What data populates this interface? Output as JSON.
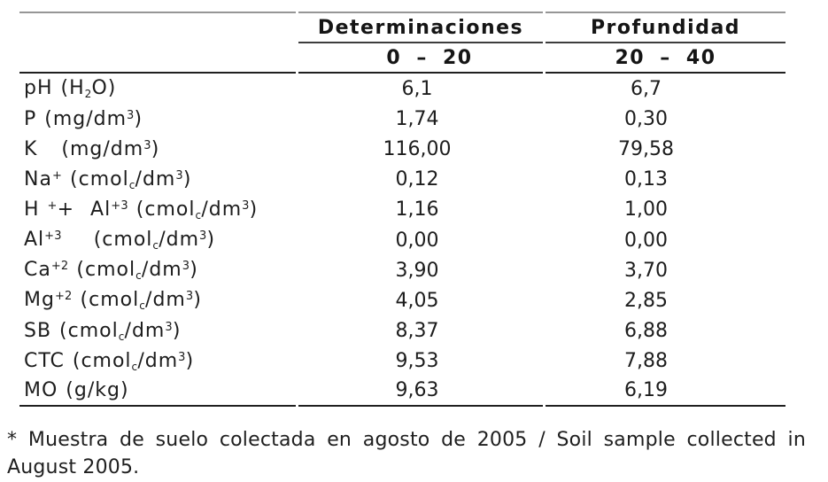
{
  "colors": {
    "background": "#ffffff",
    "text": "#1d1d1d",
    "rule_dark": "#1f1f1f",
    "rule_mid": "#3d3d3d",
    "rule_gray": "#969696"
  },
  "table": {
    "header": {
      "col1": "Determinaciones",
      "col2": "Profundidad"
    },
    "subheader": {
      "col1": "0 – 20",
      "col2": "20 – 40"
    },
    "rows": [
      {
        "id": "ph",
        "label": [
          {
            "t": "pH (H"
          },
          {
            "t": "2",
            "s": "sub"
          },
          {
            "t": "O)"
          }
        ],
        "v1": "6,1",
        "v2": "6,7"
      },
      {
        "id": "p",
        "label": [
          {
            "t": "P (mg/dm"
          },
          {
            "t": "3",
            "s": "sup"
          },
          {
            "t": ")"
          }
        ],
        "v1": "1,74",
        "v2": "0,30"
      },
      {
        "id": "k",
        "label": [
          {
            "t": "K   (mg/dm"
          },
          {
            "t": "3",
            "s": "sup"
          },
          {
            "t": ")"
          }
        ],
        "v1": "116,00",
        "v2": "79,58"
      },
      {
        "id": "na",
        "label": [
          {
            "t": "Na"
          },
          {
            "t": "+",
            "s": "sup"
          },
          {
            "t": " (cmol"
          },
          {
            "t": "c",
            "s": "sub"
          },
          {
            "t": "/dm"
          },
          {
            "t": "3",
            "s": "sup"
          },
          {
            "t": ")"
          }
        ],
        "v1": "0,12",
        "v2": "0,13"
      },
      {
        "id": "h-al",
        "label": [
          {
            "t": "H "
          },
          {
            "t": "+",
            "s": "sup"
          },
          {
            "t": "+  Al"
          },
          {
            "t": "+3",
            "s": "sup"
          },
          {
            "t": " (cmol"
          },
          {
            "t": "c",
            "s": "sub"
          },
          {
            "t": "/dm"
          },
          {
            "t": "3",
            "s": "sup"
          },
          {
            "t": ")"
          }
        ],
        "v1": "1,16",
        "v2": "1,00"
      },
      {
        "id": "al",
        "label": [
          {
            "t": "Al"
          },
          {
            "t": "+3",
            "s": "sup"
          },
          {
            "t": "    (cmol"
          },
          {
            "t": "c",
            "s": "sub"
          },
          {
            "t": "/dm"
          },
          {
            "t": "3",
            "s": "sup"
          },
          {
            "t": ")"
          }
        ],
        "v1": "0,00",
        "v2": "0,00"
      },
      {
        "id": "ca",
        "label": [
          {
            "t": "Ca"
          },
          {
            "t": "+2",
            "s": "sup"
          },
          {
            "t": " (cmol"
          },
          {
            "t": "c",
            "s": "sub"
          },
          {
            "t": "/dm"
          },
          {
            "t": "3",
            "s": "sup"
          },
          {
            "t": ")"
          }
        ],
        "v1": "3,90",
        "v2": "3,70"
      },
      {
        "id": "mg",
        "label": [
          {
            "t": "Mg"
          },
          {
            "t": "+2",
            "s": "sup"
          },
          {
            "t": " (cmol"
          },
          {
            "t": "c",
            "s": "sub"
          },
          {
            "t": "/dm"
          },
          {
            "t": "3",
            "s": "sup"
          },
          {
            "t": ")"
          }
        ],
        "v1": "4,05",
        "v2": "2,85"
      },
      {
        "id": "sb",
        "label": [
          {
            "t": "SB (cmol"
          },
          {
            "t": "c",
            "s": "sub"
          },
          {
            "t": "/dm"
          },
          {
            "t": "3",
            "s": "sup"
          },
          {
            "t": ")"
          }
        ],
        "v1": "8,37",
        "v2": "6,88"
      },
      {
        "id": "ctc",
        "label": [
          {
            "t": "CTC (cmol"
          },
          {
            "t": "c",
            "s": "sub"
          },
          {
            "t": "/dm"
          },
          {
            "t": "3",
            "s": "sup"
          },
          {
            "t": ")"
          }
        ],
        "v1": "9,53",
        "v2": "7,88"
      },
      {
        "id": "mo",
        "label": [
          {
            "t": "MO (g/kg)"
          }
        ],
        "v1": "9,63",
        "v2": "6,19"
      }
    ]
  },
  "footnote": {
    "text": "* Muestra de suelo colectada en agosto de 2005 / Soil sample collected in August 2005."
  }
}
